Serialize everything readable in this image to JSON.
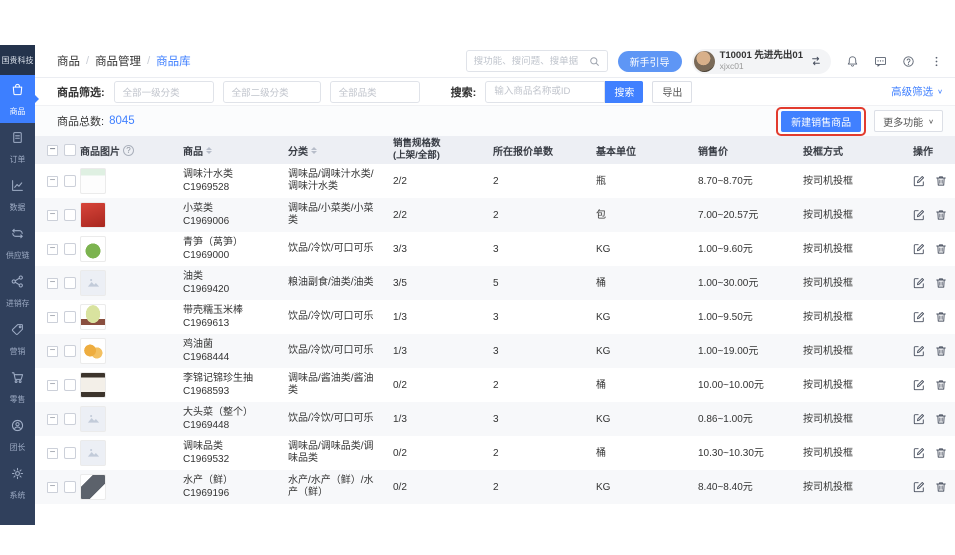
{
  "brand": {
    "logo_text": "国贵科技"
  },
  "sidebar": [
    {
      "key": "goods",
      "label": "商品",
      "icon": "bag-icon",
      "active": true
    },
    {
      "key": "orders",
      "label": "订单",
      "icon": "order-icon",
      "active": false
    },
    {
      "key": "data",
      "label": "数据",
      "icon": "chart-icon",
      "active": false
    },
    {
      "key": "supply-chain",
      "label": "供应链",
      "icon": "supply-icon",
      "active": false
    },
    {
      "key": "inventory",
      "label": "进销存",
      "icon": "inventory-icon",
      "active": false
    },
    {
      "key": "marketing",
      "label": "营销",
      "icon": "marketing-icon",
      "active": false
    },
    {
      "key": "retail",
      "label": "零售",
      "icon": "retail-icon",
      "active": false
    },
    {
      "key": "leader",
      "label": "团长",
      "icon": "leader-icon",
      "active": false
    },
    {
      "key": "system",
      "label": "系统",
      "icon": "system-icon",
      "active": false
    }
  ],
  "topbar": {
    "breadcrumb": {
      "level1": "商品",
      "level2": "商品管理",
      "level3": "商品库"
    },
    "search_placeholder": "搜功能、搜问题、搜单据",
    "guide_button": "新手引导",
    "user_name": "T10001 先进先出01",
    "user_account": "xjxc01",
    "right_icons": [
      "notification-icon",
      "message-icon",
      "help-icon",
      "more-icon"
    ]
  },
  "filterbar": {
    "filter_label": "商品筛选:",
    "select1": "全部一级分类",
    "select2": "全部二级分类",
    "select3": "全部品类",
    "search_label": "搜索:",
    "search_placeholder": "输入商品名称或ID",
    "search_button": "搜索",
    "export_button": "导出",
    "advanced_filter": "高级筛选"
  },
  "toolbar": {
    "total_label": "商品总数:",
    "total_value": "8045",
    "create_button": "新建销售商品",
    "more_button": "更多功能"
  },
  "table": {
    "headers": {
      "image": "商品图片",
      "product": "商品",
      "category": "分类",
      "spec_line1": "销售规格数",
      "spec_line2": "(上架/全部)",
      "quote": "所在报价单数",
      "unit": "基本单位",
      "price": "销售价",
      "basket": "投框方式",
      "action": "操作"
    },
    "rows": [
      {
        "image": "label",
        "name": "调味汁水类",
        "code": "C1969528",
        "category": "调味品/调味汁水类/调味汁水类",
        "spec": "2/2",
        "quote": "2",
        "unit": "瓶",
        "price": "8.70~8.70元",
        "basket": "按司机投框"
      },
      {
        "image": "red-package",
        "name": "小菜类",
        "code": "C1969006",
        "category": "调味品/小菜类/小菜类",
        "spec": "2/2",
        "quote": "2",
        "unit": "包",
        "price": "7.00~20.57元",
        "basket": "按司机投框"
      },
      {
        "image": "lettuce",
        "name": "青笋（莴笋）",
        "code": "C1969000",
        "category": "饮品/冷饮/可口可乐",
        "spec": "3/3",
        "quote": "3",
        "unit": "KG",
        "price": "1.00~9.60元",
        "basket": "按司机投框"
      },
      {
        "image": "placeholder",
        "name": "油类",
        "code": "C1969420",
        "category": "粮油副食/油类/油类",
        "spec": "3/5",
        "quote": "5",
        "unit": "桶",
        "price": "1.00~30.00元",
        "basket": "按司机投框"
      },
      {
        "image": "corn",
        "name": "带壳糯玉米棒",
        "code": "C1969613",
        "category": "饮品/冷饮/可口可乐",
        "spec": "1/3",
        "quote": "3",
        "unit": "KG",
        "price": "1.00~9.50元",
        "basket": "按司机投框"
      },
      {
        "image": "mushroom",
        "name": "鸡油菌",
        "code": "C1968444",
        "category": "饮品/冷饮/可口可乐",
        "spec": "1/3",
        "quote": "3",
        "unit": "KG",
        "price": "1.00~19.00元",
        "basket": "按司机投框"
      },
      {
        "image": "soysauce",
        "name": "李锦记锦珍生抽",
        "code": "C1968593",
        "category": "调味品/酱油类/酱油类",
        "spec": "0/2",
        "quote": "2",
        "unit": "桶",
        "price": "10.00~10.00元",
        "basket": "按司机投框"
      },
      {
        "image": "placeholder",
        "name": "大头菜（整个）",
        "code": "C1969448",
        "category": "饮品/冷饮/可口可乐",
        "spec": "1/3",
        "quote": "3",
        "unit": "KG",
        "price": "0.86~1.00元",
        "basket": "按司机投框"
      },
      {
        "image": "placeholder",
        "name": "调味品类",
        "code": "C1969532",
        "category": "调味品/调味品类/调味品类",
        "spec": "0/2",
        "quote": "2",
        "unit": "桶",
        "price": "10.30~10.30元",
        "basket": "按司机投框"
      },
      {
        "image": "fish",
        "name": "水产（鲜）",
        "code": "C1969196",
        "category": "水产/水产（鲜）/水产（鲜）",
        "spec": "0/2",
        "quote": "2",
        "unit": "KG",
        "price": "8.40~8.40元",
        "basket": "按司机投框"
      }
    ]
  },
  "colors": {
    "primary": "#4080ff",
    "sidebar_bg": "#30405c",
    "active_item": "#3d7fff",
    "annotation": "#e23b2e",
    "table_header_bg": "#edeff4"
  }
}
